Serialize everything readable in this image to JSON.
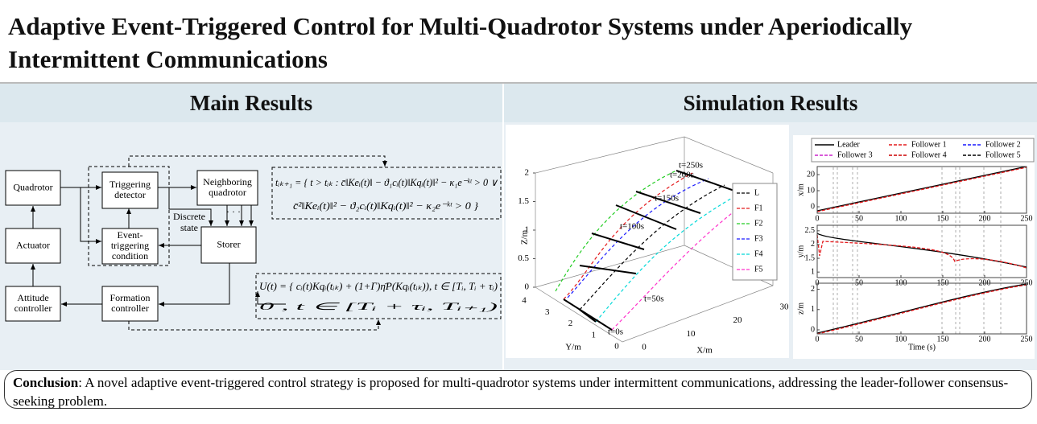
{
  "header": {
    "title": "Adaptive Event-Triggered Control for Multi-Quadrotor Systems under Aperiodically Intermittent Communications"
  },
  "main_results": {
    "heading": "Main Results",
    "blocks": [
      [
        "Quadrotor"
      ],
      [
        "Triggering",
        "detector"
      ],
      [
        "Neighboring",
        "quadrotor"
      ],
      [
        "Event-",
        "triggering",
        "condition"
      ],
      [
        "Storer"
      ],
      [
        "Actuator"
      ],
      [
        "Attitude",
        "controller"
      ],
      [
        "Formation",
        "controller"
      ]
    ],
    "discrete_state": [
      "Discrete",
      "state"
    ],
    "dots": "· · ·",
    "trigger_equation": [
      "tᵢₖ₊₁ = { t > tᵢₖ : c̄‖Keᵢ(t)‖ − ϑ₁cᵢ(t)‖Kqᵢ(t)‖² − κ₁e⁻ᵏᵗ > 0 ∨",
      "c̄²‖Keᵢ(t)‖² − ϑ₂cᵢ(t)‖Kqᵢ(t)‖² − κ₂e⁻ᵏᵗ > 0 }"
    ],
    "control_equation": [
      "U(t) = { cᵢ(t)Kqᵢ(tᵢₖ) + (1+Γ)η̄P(Kqᵢ(tᵢₖ)), t ∈ [Tᵢ, Tᵢ + τᵢ)",
      "0                                                   , t ∈ [Tᵢ + τᵢ, Tᵢ₊₁)"
    ]
  },
  "simulation": {
    "heading": "Simulation Results",
    "plot3d": {
      "zlabel": "Z/m",
      "ylabel": "Y/m",
      "xlabel": "X/m",
      "zticks": [
        0,
        0.5,
        1,
        1.5,
        2
      ],
      "yticks": [
        0,
        1,
        2,
        3,
        4
      ],
      "xticks": [
        0,
        10,
        20,
        30
      ],
      "times": [
        "t=250s",
        "t=200s",
        "t=150s",
        "t=100s",
        "t=50s",
        "t=0s"
      ],
      "legend": [
        {
          "name": "L",
          "color": "#000000"
        },
        {
          "name": "F1",
          "color": "#e41a1c"
        },
        {
          "name": "F2",
          "color": "#22cc22"
        },
        {
          "name": "F3",
          "color": "#1a1aff"
        },
        {
          "name": "F4",
          "color": "#00d8d8"
        },
        {
          "name": "F5",
          "color": "#ff33cc"
        }
      ]
    },
    "plot2d": {
      "xlabel": "Time (s)",
      "xticks": [
        0,
        50,
        100,
        150,
        200,
        250
      ],
      "xlim": [
        0,
        250
      ],
      "legend": [
        {
          "name": "Leader",
          "color": "#000000"
        },
        {
          "name": "Follower 1",
          "color": "#e41a1c"
        },
        {
          "name": "Follower 2",
          "color": "#1a1aff"
        },
        {
          "name": "Follower 3",
          "color": "#cc22cc"
        },
        {
          "name": "Follower 4",
          "color": "#cc0000"
        },
        {
          "name": "Follower 5",
          "color": "#000000"
        }
      ],
      "panels": [
        {
          "ylabel": "x/m",
          "yticks": [
            0,
            10,
            20
          ],
          "ylim": [
            -4,
            25
          ]
        },
        {
          "ylabel": "y/m",
          "yticks": [
            1,
            1.5,
            2,
            2.5
          ],
          "ylim": [
            0.8,
            2.7
          ]
        },
        {
          "ylabel": "z/m",
          "yticks": [
            0,
            1,
            2
          ],
          "ylim": [
            -0.2,
            2.3
          ]
        }
      ]
    }
  },
  "conclusion": {
    "label": "Conclusion",
    "text": ": A novel adaptive event-triggered control strategy is proposed for multi-quadrotor systems under intermittent communications, addressing the leader-follower consensus-seeking problem."
  }
}
